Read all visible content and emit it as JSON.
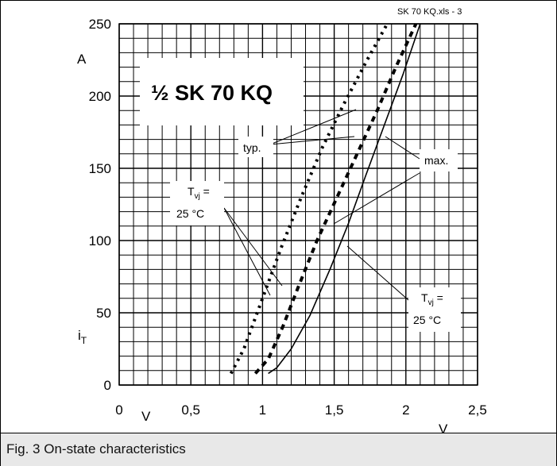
{
  "file_label": "SK 70 KQ.xls - 3",
  "caption": "Fig. 3 On-state characteristics",
  "chart_data": {
    "type": "line",
    "title": "½ SK 70 KQ",
    "xlabel": "V",
    "x_unit_inline": "V",
    "ylabel_top": "A",
    "ylabel_bottom": "i",
    "ylabel_bottom_sub": "T",
    "xlim": [
      0,
      2.5
    ],
    "ylim": [
      0,
      250
    ],
    "x_ticks": [
      0,
      0.5,
      1,
      1.5,
      2,
      2.5
    ],
    "x_tick_labels": [
      "0",
      "0,5",
      "1",
      "1,5",
      "2",
      "2,5"
    ],
    "y_ticks": [
      0,
      50,
      100,
      150,
      200,
      250
    ],
    "y_tick_labels": [
      "0",
      "50",
      "100",
      "150",
      "200",
      "250"
    ],
    "grid": true,
    "grid_minor_x_step": 0.1,
    "grid_minor_y_step": 10,
    "series": [
      {
        "style": "dotted",
        "x": [
          0.78,
          0.87,
          1.0,
          1.13,
          1.27,
          1.42,
          1.57,
          1.73,
          1.87
        ],
        "y": [
          8,
          25,
          60,
          95,
          130,
          165,
          195,
          225,
          250
        ]
      },
      {
        "style": "dashed",
        "x": [
          0.95,
          1.04,
          1.14,
          1.25,
          1.38,
          1.52,
          1.66,
          1.8,
          1.93,
          2.07
        ],
        "y": [
          8,
          18,
          40,
          68,
          100,
          130,
          160,
          190,
          220,
          250
        ]
      },
      {
        "style": "solid",
        "x": [
          1.04,
          1.1,
          1.2,
          1.33,
          1.47,
          1.6,
          1.72,
          1.85,
          1.98,
          2.1
        ],
        "y": [
          8,
          12,
          25,
          48,
          80,
          112,
          145,
          180,
          215,
          250
        ]
      }
    ],
    "annotations": [
      {
        "text": "typ."
      },
      {
        "text": "max."
      },
      {
        "text_main": "T",
        "text_sub": "vj",
        "text_rest": " =",
        "text_line2": "25 °C",
        "position": "left"
      },
      {
        "text_main": "T",
        "text_sub": "vj",
        "text_rest": " =",
        "text_line2": "25 °C",
        "position": "right"
      }
    ]
  }
}
